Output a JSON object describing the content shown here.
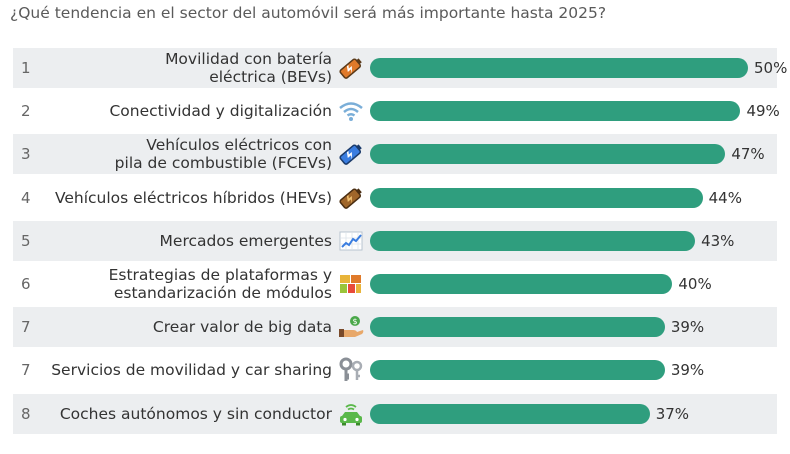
{
  "title": "¿Qué tendencia en el sector del automóvil será más importante hasta 2025?",
  "colors": {
    "bar": "#2f9e7e",
    "row_shade": "#eceef0"
  },
  "chart_data": {
    "type": "bar",
    "orientation": "horizontal",
    "title": "¿Qué tendencia en el sector del automóvil será más importante hasta 2025?",
    "xlim": [
      0,
      50
    ],
    "rows": [
      {
        "rank": "1",
        "label": "Movilidad con batería\neléctrica (BEVs)",
        "value": 50,
        "value_label": "50%",
        "icon": "battery-icon"
      },
      {
        "rank": "2",
        "label": "Conectividad y digitalización",
        "value": 49,
        "value_label": "49%",
        "icon": "wifi-icon"
      },
      {
        "rank": "3",
        "label": "Vehículos eléctricos con\npila de combustible (FCEVs)",
        "value": 47,
        "value_label": "47%",
        "icon": "blue-battery-icon"
      },
      {
        "rank": "4",
        "label": "Vehículos eléctricos híbridos (HEVs)",
        "value": 44,
        "value_label": "44%",
        "icon": "brown-battery-icon"
      },
      {
        "rank": "5",
        "label": "Mercados emergentes",
        "value": 43,
        "value_label": "43%",
        "icon": "chart-up-icon"
      },
      {
        "rank": "6",
        "label": "Estrategias de plataformas y\nestandarización de módulos",
        "value": 40,
        "value_label": "40%",
        "icon": "blocks-icon"
      },
      {
        "rank": "7",
        "label": "Crear valor de big data",
        "value": 39,
        "value_label": "39%",
        "icon": "money-hand-icon"
      },
      {
        "rank": "7",
        "label": "Servicios de movilidad y car sharing",
        "value": 39,
        "value_label": "39%",
        "icon": "keys-icon"
      },
      {
        "rank": "8",
        "label": "Coches autónomos y sin conductor",
        "value": 37,
        "value_label": "37%",
        "icon": "autonomous-car-icon"
      }
    ]
  }
}
